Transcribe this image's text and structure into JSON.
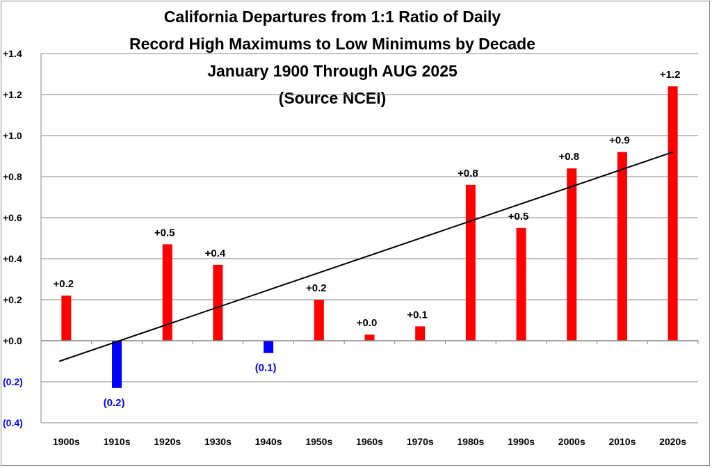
{
  "chart_data": {
    "type": "bar",
    "title_lines": [
      "California Departures from 1:1 Ratio of Daily",
      "Record High Maximums to Low Minimums by Decade",
      "January 1900 Through AUG 2025",
      "(Source NCEI)"
    ],
    "categories": [
      "1900s",
      "1910s",
      "1920s",
      "1930s",
      "1940s",
      "1950s",
      "1960s",
      "1970s",
      "1980s",
      "1990s",
      "2000s",
      "2010s",
      "2020s"
    ],
    "values": [
      0.22,
      -0.23,
      0.47,
      0.37,
      -0.06,
      0.2,
      0.03,
      0.07,
      0.76,
      0.55,
      0.84,
      0.92,
      1.24
    ],
    "data_labels": [
      "+0.2",
      "(0.2)",
      "+0.5",
      "+0.4",
      "(0.1)",
      "+0.2",
      "+0.0",
      "+0.1",
      "+0.8",
      "+0.5",
      "+0.8",
      "+0.9",
      "+1.2"
    ],
    "y_ticks": [
      1.4,
      1.2,
      1.0,
      0.8,
      0.6,
      0.4,
      0.2,
      0.0,
      -0.2,
      -0.4
    ],
    "y_tick_labels": [
      "+1.4",
      "+1.2",
      "+1.0",
      "+0.8",
      "+0.6",
      "+0.4",
      "+0.2",
      "+0.0",
      "(0.2)",
      "(0.4)"
    ],
    "ylim": [
      -0.4,
      1.4
    ],
    "trendline": {
      "type": "linear",
      "start": -0.1,
      "end": 0.92
    },
    "grid": true,
    "legend": "none",
    "colors": {
      "positive": "#ff0000",
      "negative": "#0000ff",
      "trend": "#000000",
      "grid": "#868686"
    }
  }
}
